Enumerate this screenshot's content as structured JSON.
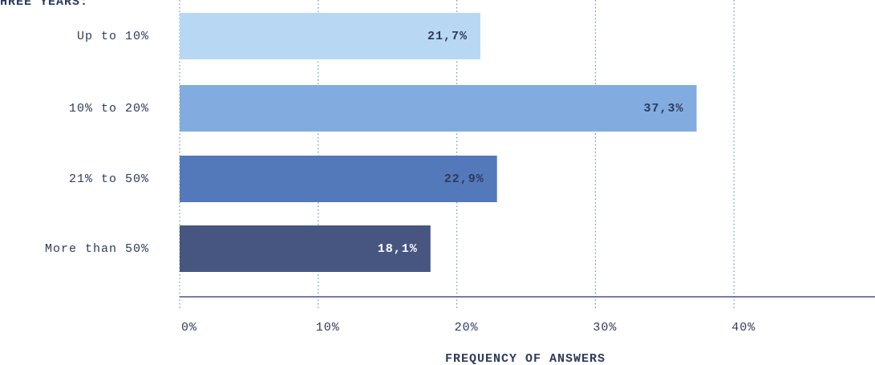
{
  "chart_data": {
    "type": "bar",
    "orientation": "horizontal",
    "title": "N THREE YEARS:",
    "categories": [
      "Up to 10%",
      "10% to 20%",
      "21% to 50%",
      "More than 50%"
    ],
    "values": [
      21.7,
      37.3,
      22.9,
      18.1
    ],
    "value_labels": [
      "21,7%",
      "37,3%",
      "22,9%",
      "18,1%"
    ],
    "colors": [
      "#b8d7f3",
      "#82acdf",
      "#5479ba",
      "#475581"
    ],
    "xlabel": "FREQUENCY OF ANSWERS",
    "xlim": [
      0,
      50
    ],
    "xticks": [
      {
        "value": 0,
        "label": "0%"
      },
      {
        "value": 10,
        "label": "10%"
      },
      {
        "value": 20,
        "label": "20%"
      },
      {
        "value": 30,
        "label": "30%"
      },
      {
        "value": 40,
        "label": "40%"
      }
    ],
    "grid": true
  }
}
